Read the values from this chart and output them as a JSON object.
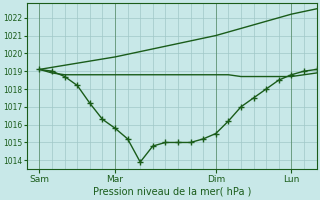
{
  "bg_color": "#c8e8e8",
  "grid_color": "#a0c8c8",
  "line_color": "#1a5c1a",
  "xlabel": "Pression niveau de la mer( hPa )",
  "ylim": [
    1013.5,
    1022.8
  ],
  "yticks": [
    1014,
    1015,
    1016,
    1017,
    1018,
    1019,
    1020,
    1021,
    1022
  ],
  "xtick_labels": [
    "Sam",
    "Mar",
    "Dim",
    "Lun"
  ],
  "xtick_pos": [
    0,
    3,
    7,
    10
  ],
  "xlim": [
    -0.5,
    11.0
  ],
  "line1_x": [
    0,
    3,
    7,
    10,
    11
  ],
  "line1_y": [
    1019.1,
    1019.8,
    1021.0,
    1022.2,
    1022.5
  ],
  "line2_x": [
    0,
    0.5,
    1.0,
    1.5,
    2.0,
    2.5,
    3.0,
    3.5,
    4.0,
    4.5,
    5.0,
    5.5,
    6.0,
    6.5,
    7.0,
    7.5,
    8.0,
    8.5,
    9.0,
    9.5,
    10.0,
    10.5,
    11.0
  ],
  "line2_y": [
    1019.1,
    1019.0,
    1018.7,
    1018.2,
    1017.2,
    1016.3,
    1015.8,
    1015.2,
    1013.9,
    1014.8,
    1015.0,
    1015.0,
    1015.0,
    1015.2,
    1015.5,
    1016.2,
    1017.0,
    1017.5,
    1018.0,
    1018.5,
    1018.8,
    1019.0,
    1019.1
  ],
  "line3_x": [
    0,
    0.5,
    1.0,
    1.5,
    2.0,
    2.5,
    3.0,
    4.0,
    5.0,
    6.0,
    7.0,
    7.5,
    8.0,
    8.5,
    9.0,
    9.5,
    10.0,
    10.5,
    11.0
  ],
  "line3_y": [
    1019.1,
    1018.9,
    1018.8,
    1018.8,
    1018.8,
    1018.8,
    1018.8,
    1018.8,
    1018.8,
    1018.8,
    1018.8,
    1018.8,
    1018.7,
    1018.7,
    1018.7,
    1018.7,
    1018.7,
    1018.8,
    1018.9
  ]
}
